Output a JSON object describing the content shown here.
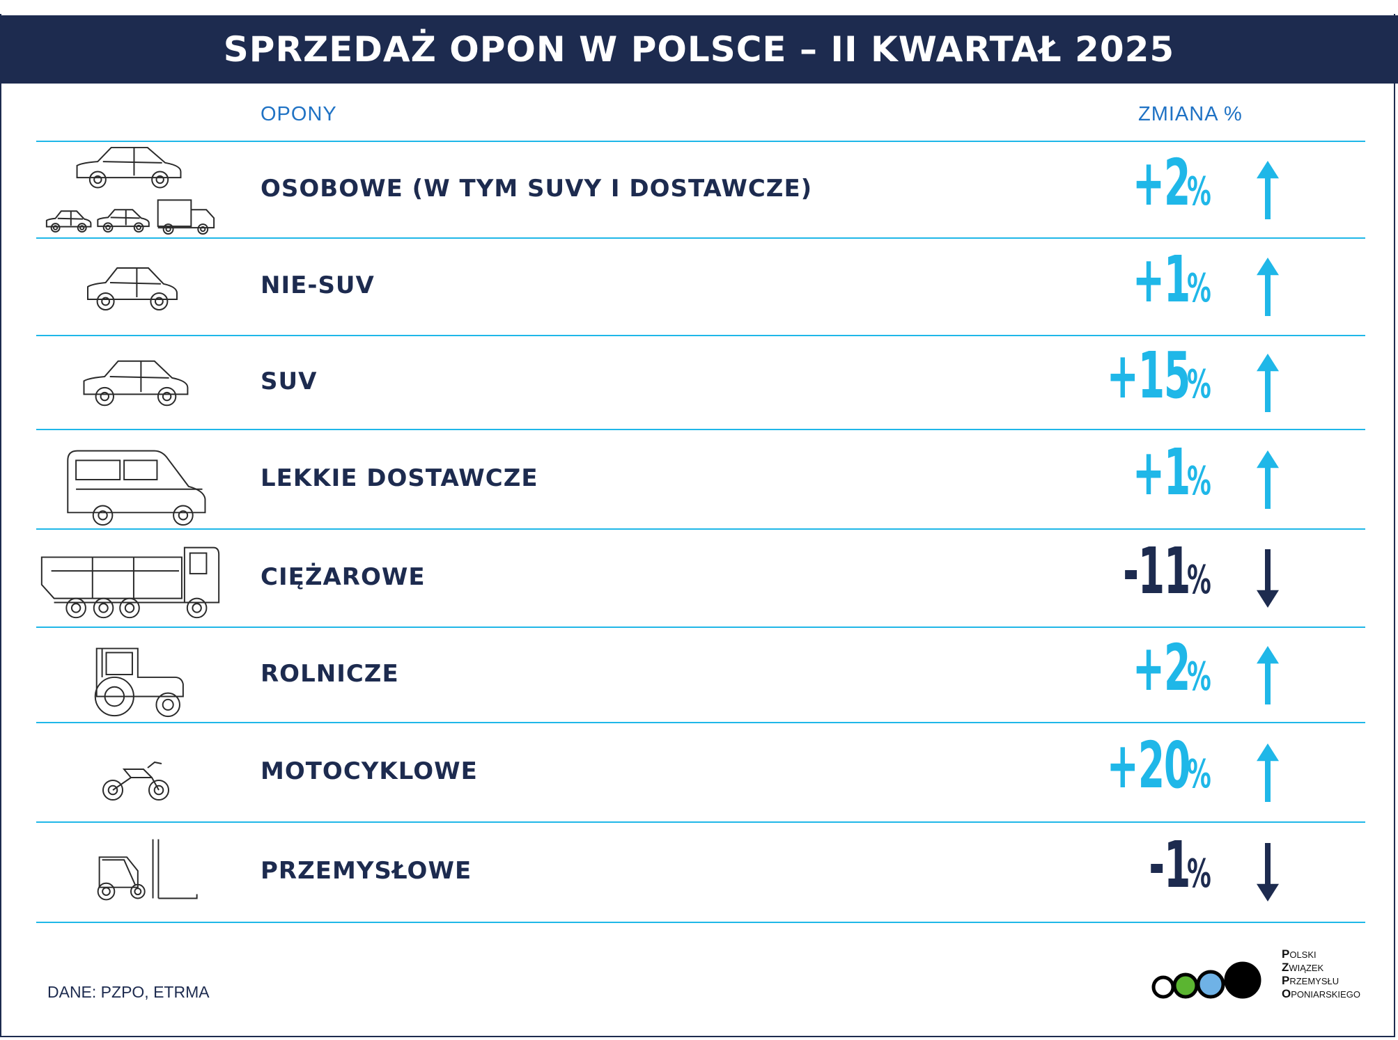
{
  "title": "SPRZEDAŻ OPON W POLSCE – II KWARTAŁ 2025",
  "headers": {
    "category": "OPONY",
    "change": "ZMIANA %"
  },
  "colors": {
    "navy": "#1d2b4f",
    "positive": "#1fb7e8",
    "negative": "#1d2b4f",
    "line": "#1fb7e8"
  },
  "rows": [
    {
      "label": "OSOBOWE (W TYM SUVY I DOSTAWCZE)",
      "value": "+2",
      "pct": "%",
      "direction": "up",
      "icon": "car-group-icon"
    },
    {
      "label": "NIE-SUV",
      "value": "+1",
      "pct": "%",
      "direction": "up",
      "icon": "hatchback-icon"
    },
    {
      "label": "SUV",
      "value": "+15",
      "pct": "%",
      "direction": "up",
      "icon": "suv-icon"
    },
    {
      "label": "LEKKIE DOSTAWCZE",
      "value": "+1",
      "pct": "%",
      "direction": "up",
      "icon": "van-icon"
    },
    {
      "label": "CIĘŻAROWE",
      "value": "-11",
      "pct": "%",
      "direction": "down",
      "icon": "truck-icon"
    },
    {
      "label": "ROLNICZE",
      "value": "+2",
      "pct": "%",
      "direction": "up",
      "icon": "tractor-icon"
    },
    {
      "label": "MOTOCYKLOWE",
      "value": "+20",
      "pct": "%",
      "direction": "up",
      "icon": "motorcycle-icon"
    },
    {
      "label": "PRZEMYSŁOWE",
      "value": "-1",
      "pct": "%",
      "direction": "down",
      "icon": "forklift-icon"
    }
  ],
  "chart_data": {
    "type": "table",
    "title": "SPRZEDAŻ OPON W POLSCE – II KWARTAŁ 2025",
    "columns": [
      "OPONY",
      "ZMIANA %"
    ],
    "categories": [
      "OSOBOWE (W TYM SUVY I DOSTAWCZE)",
      "NIE-SUV",
      "SUV",
      "LEKKIE DOSTAWCZE",
      "CIĘŻAROWE",
      "ROLNICZE",
      "MOTOCYKLOWE",
      "PRZEMYSŁOWE"
    ],
    "values": [
      2,
      1,
      15,
      1,
      -11,
      2,
      20,
      -1
    ]
  },
  "source": "DANE: PZPO, ETRMA",
  "logo": {
    "lines": [
      {
        "initial": "P",
        "rest": "OLSKI"
      },
      {
        "initial": "Z",
        "rest": "WIĄZEK"
      },
      {
        "initial": "P",
        "rest": "RZEMYSŁU"
      },
      {
        "initial": "O",
        "rest": "PONIARSKIEGO"
      }
    ],
    "circle_colors": [
      "#ffffff",
      "#5bb531",
      "#6fb2e6",
      "#000000"
    ]
  }
}
